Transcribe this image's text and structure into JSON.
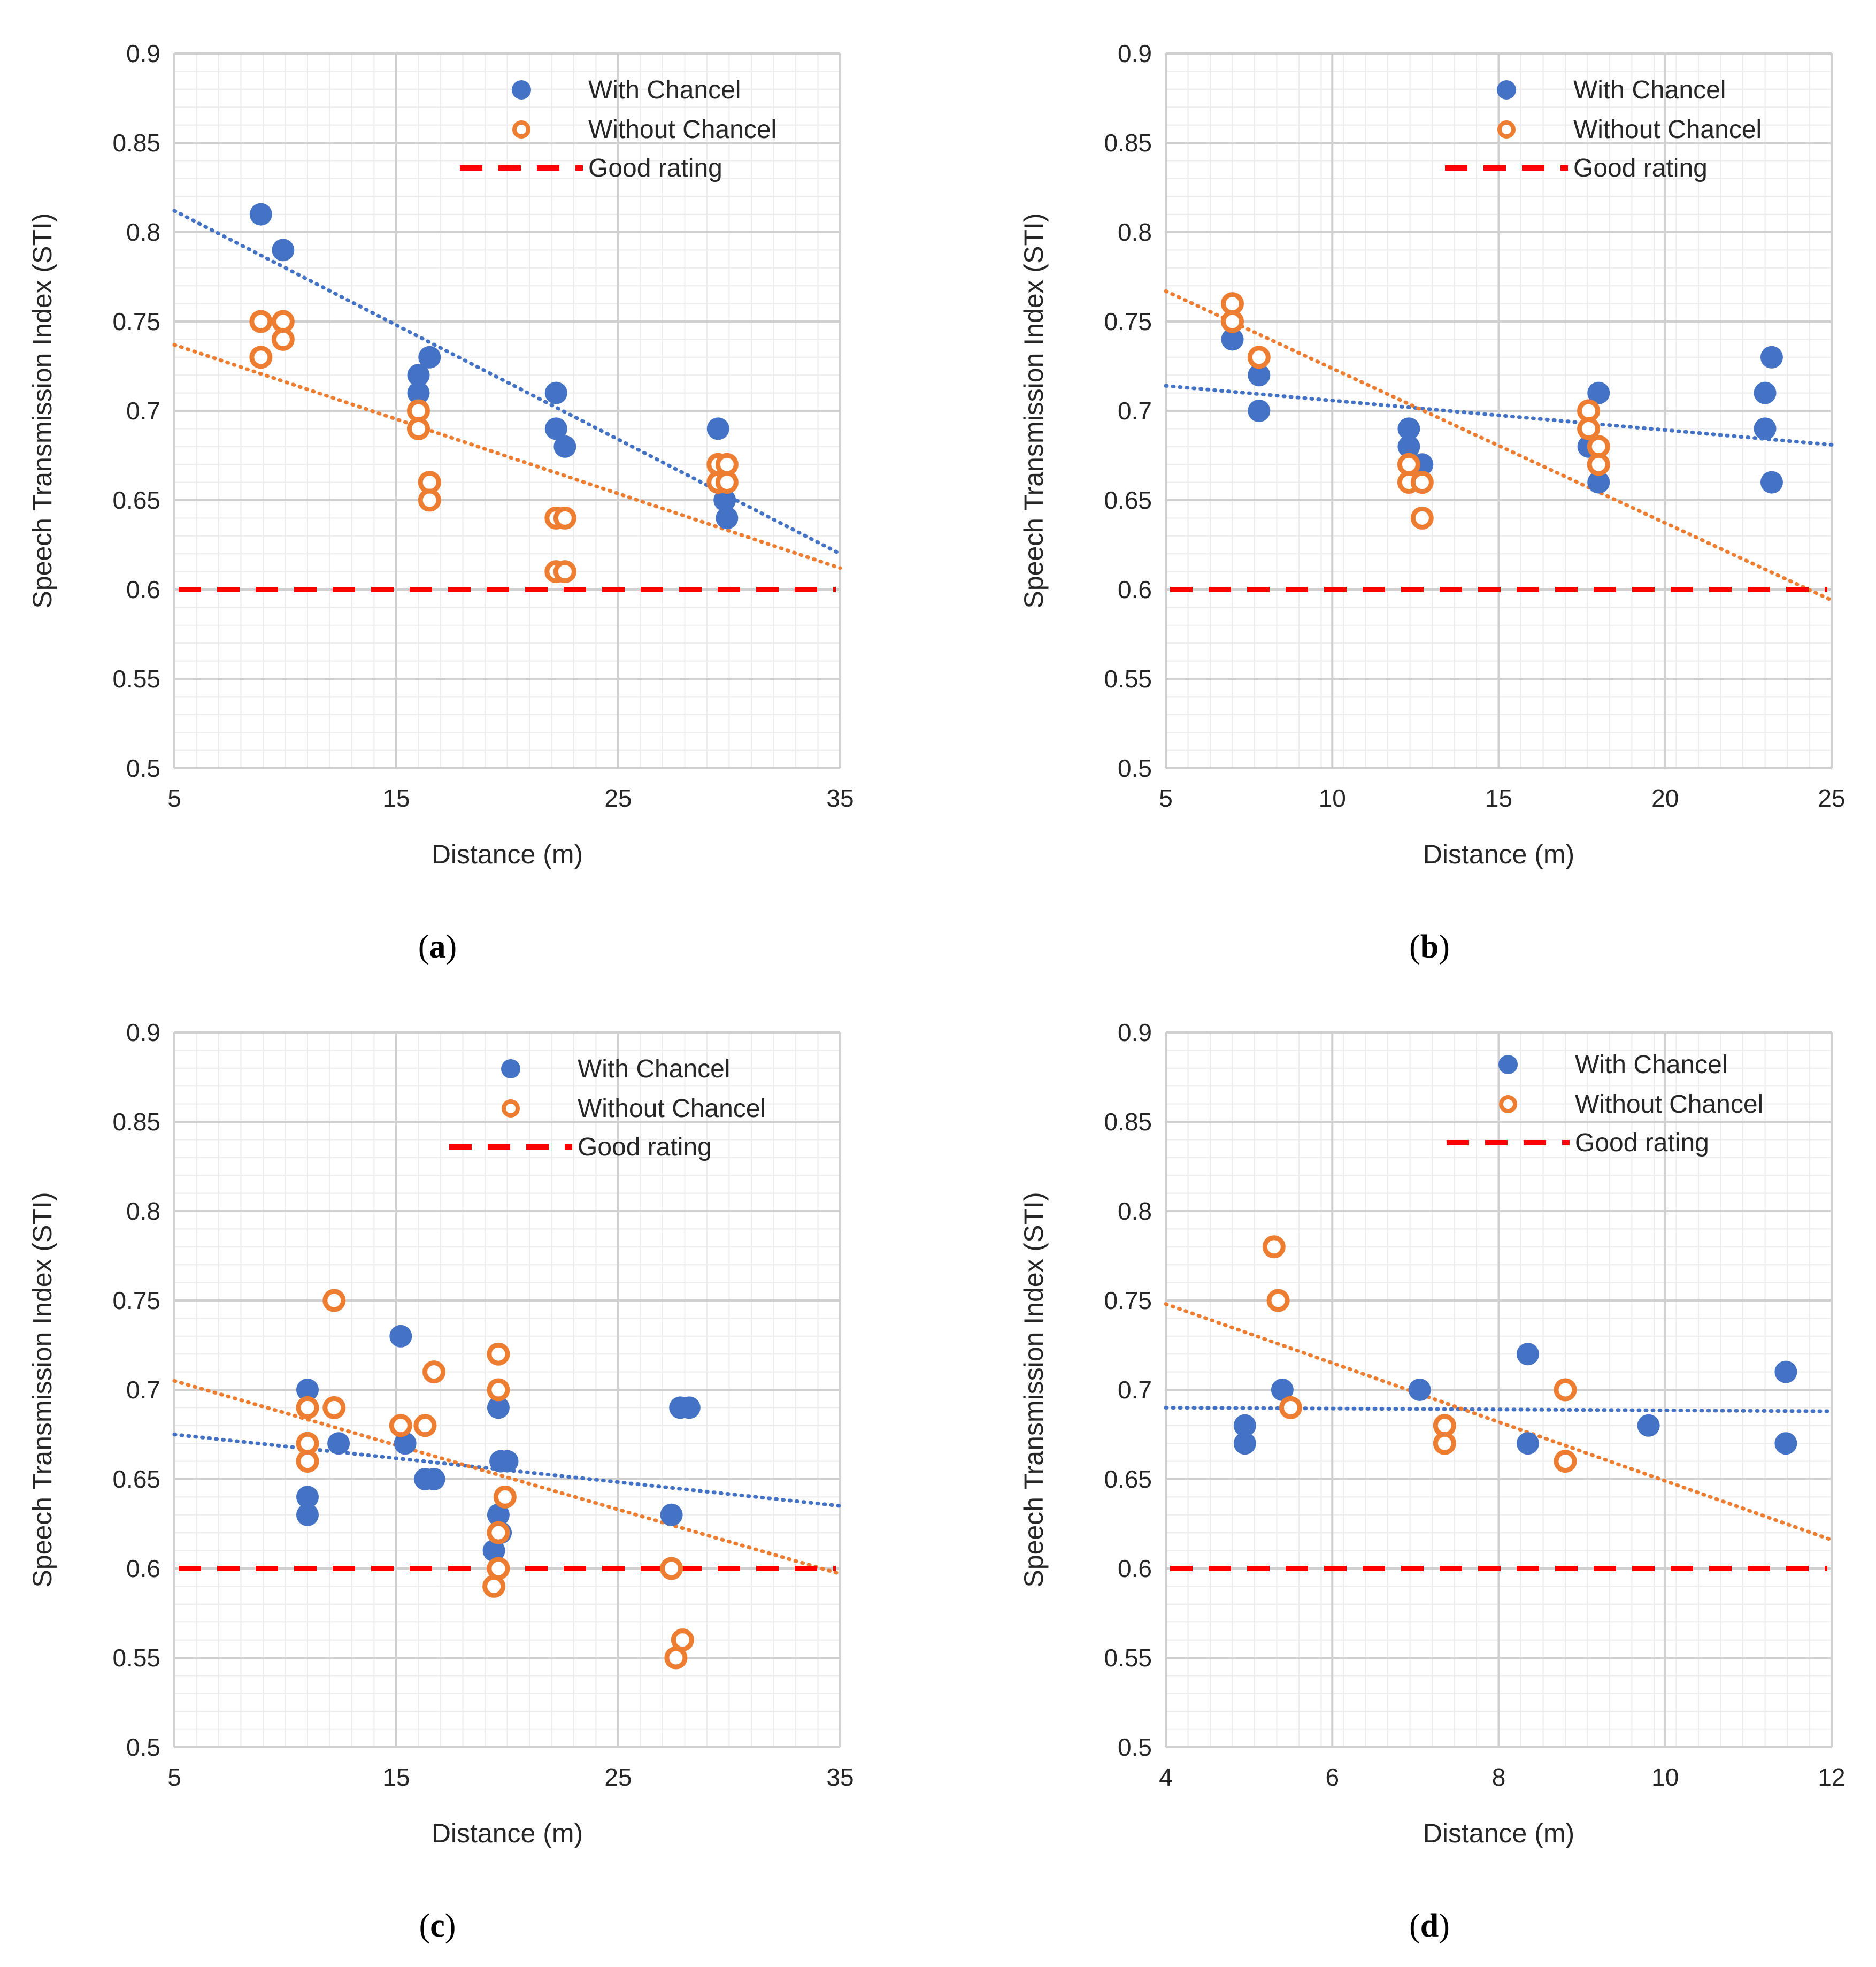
{
  "colors": {
    "with": "#4472C4",
    "without": "#ED7D31",
    "good": "#FF0000",
    "grid_major": "#D0D0D0",
    "grid_minor": "#ECECEC"
  },
  "chart_data": [
    {
      "id": "a",
      "type": "scatter",
      "caption_letter": "a",
      "xlabel": "Distance (m)",
      "ylabel": "Speech Transmission Index (STI)",
      "xlim": [
        5,
        35
      ],
      "ylim": [
        0.5,
        0.9
      ],
      "xticks": [
        5,
        15,
        25,
        35
      ],
      "yticks": [
        0.5,
        0.55,
        0.6,
        0.65,
        0.7,
        0.75,
        0.8,
        0.85,
        0.9
      ],
      "legend_position": "top-right",
      "series": [
        {
          "name": "With Chancel",
          "marker": "filled-circle",
          "points": [
            [
              8.9,
              0.81
            ],
            [
              9.9,
              0.79
            ],
            [
              16,
              0.72
            ],
            [
              16,
              0.71
            ],
            [
              16.5,
              0.73
            ],
            [
              22.2,
              0.71
            ],
            [
              22.2,
              0.69
            ],
            [
              22.6,
              0.68
            ],
            [
              29.5,
              0.69
            ],
            [
              29.8,
              0.65
            ],
            [
              29.9,
              0.64
            ]
          ],
          "trend": [
            [
              5,
              0.812
            ],
            [
              35,
              0.62
            ]
          ]
        },
        {
          "name": "Without Chancel",
          "marker": "hollow-circle",
          "points": [
            [
              8.9,
              0.75
            ],
            [
              9.9,
              0.75
            ],
            [
              9.9,
              0.74
            ],
            [
              8.9,
              0.73
            ],
            [
              16,
              0.7
            ],
            [
              16,
              0.69
            ],
            [
              16.5,
              0.66
            ],
            [
              16.5,
              0.65
            ],
            [
              22.2,
              0.64
            ],
            [
              22.6,
              0.64
            ],
            [
              22.2,
              0.61
            ],
            [
              22.6,
              0.61
            ],
            [
              29.5,
              0.67
            ],
            [
              29.9,
              0.67
            ],
            [
              29.5,
              0.66
            ],
            [
              29.9,
              0.66
            ]
          ],
          "trend": [
            [
              5,
              0.737
            ],
            [
              35,
              0.612
            ]
          ]
        }
      ],
      "reference_line": {
        "name": "Good rating",
        "y": 0.6
      }
    },
    {
      "id": "b",
      "type": "scatter",
      "caption_letter": "b",
      "xlabel": "Distance (m)",
      "ylabel": "Speech Transmission Index (STI)",
      "xlim": [
        5,
        25
      ],
      "ylim": [
        0.5,
        0.9
      ],
      "xticks": [
        5,
        10,
        15,
        20,
        25
      ],
      "yticks": [
        0.5,
        0.55,
        0.6,
        0.65,
        0.7,
        0.75,
        0.8,
        0.85,
        0.9
      ],
      "legend_position": "top-right",
      "series": [
        {
          "name": "With Chancel",
          "marker": "filled-circle",
          "points": [
            [
              7,
              0.74
            ],
            [
              7.8,
              0.72
            ],
            [
              7.8,
              0.7
            ],
            [
              12.3,
              0.69
            ],
            [
              12.3,
              0.68
            ],
            [
              12.7,
              0.67
            ],
            [
              17.7,
              0.68
            ],
            [
              18,
              0.71
            ],
            [
              18,
              0.66
            ],
            [
              23,
              0.71
            ],
            [
              23,
              0.69
            ],
            [
              23.2,
              0.73
            ],
            [
              23.2,
              0.66
            ]
          ],
          "trend": [
            [
              5,
              0.714
            ],
            [
              25,
              0.681
            ]
          ]
        },
        {
          "name": "Without Chancel",
          "marker": "hollow-circle",
          "points": [
            [
              7,
              0.76
            ],
            [
              7,
              0.75
            ],
            [
              7.8,
              0.73
            ],
            [
              12.3,
              0.67
            ],
            [
              12.3,
              0.66
            ],
            [
              12.7,
              0.66
            ],
            [
              12.7,
              0.64
            ],
            [
              17.7,
              0.7
            ],
            [
              17.7,
              0.69
            ],
            [
              18,
              0.68
            ],
            [
              18,
              0.67
            ]
          ],
          "trend": [
            [
              5,
              0.767
            ],
            [
              25,
              0.594
            ]
          ]
        }
      ],
      "reference_line": {
        "name": "Good rating",
        "y": 0.6
      }
    },
    {
      "id": "c",
      "type": "scatter",
      "caption_letter": "c",
      "xlabel": "Distance (m)",
      "ylabel": "Speech Transmission Index (STI)",
      "xlim": [
        5,
        35
      ],
      "ylim": [
        0.5,
        0.9
      ],
      "xticks": [
        5,
        15,
        25,
        35
      ],
      "yticks": [
        0.5,
        0.55,
        0.6,
        0.65,
        0.7,
        0.75,
        0.8,
        0.85,
        0.9
      ],
      "legend_position": "top-right",
      "series": [
        {
          "name": "With Chancel",
          "marker": "filled-circle",
          "points": [
            [
              11,
              0.7
            ],
            [
              11,
              0.64
            ],
            [
              11,
              0.63
            ],
            [
              12.4,
              0.67
            ],
            [
              15.2,
              0.73
            ],
            [
              15.4,
              0.67
            ],
            [
              16.3,
              0.65
            ],
            [
              16.7,
              0.65
            ],
            [
              19.6,
              0.69
            ],
            [
              19.7,
              0.66
            ],
            [
              20,
              0.66
            ],
            [
              19.6,
              0.63
            ],
            [
              19.7,
              0.62
            ],
            [
              19.4,
              0.61
            ],
            [
              27.4,
              0.63
            ],
            [
              27.8,
              0.69
            ],
            [
              28.2,
              0.69
            ]
          ],
          "trend": [
            [
              5,
              0.675
            ],
            [
              35,
              0.635
            ]
          ]
        },
        {
          "name": "Without Chancel",
          "marker": "hollow-circle",
          "points": [
            [
              12.2,
              0.75
            ],
            [
              11,
              0.69
            ],
            [
              11,
              0.67
            ],
            [
              11,
              0.66
            ],
            [
              12.2,
              0.69
            ],
            [
              15.2,
              0.68
            ],
            [
              16.3,
              0.68
            ],
            [
              16.7,
              0.71
            ],
            [
              19.6,
              0.72
            ],
            [
              19.6,
              0.7
            ],
            [
              19.9,
              0.64
            ],
            [
              19.6,
              0.62
            ],
            [
              19.6,
              0.6
            ],
            [
              19.4,
              0.59
            ],
            [
              27.4,
              0.6
            ],
            [
              27.6,
              0.55
            ],
            [
              27.9,
              0.56
            ]
          ],
          "trend": [
            [
              5,
              0.705
            ],
            [
              35,
              0.597
            ]
          ]
        }
      ],
      "reference_line": {
        "name": "Good rating",
        "y": 0.6
      }
    },
    {
      "id": "d",
      "type": "scatter",
      "caption_letter": "d",
      "xlabel": "Distance (m)",
      "ylabel": "Speech Transmission Index (STI)",
      "xlim": [
        4,
        12
      ],
      "ylim": [
        0.5,
        0.9
      ],
      "xticks": [
        4,
        6,
        8,
        10,
        12
      ],
      "yticks": [
        0.5,
        0.55,
        0.6,
        0.65,
        0.7,
        0.75,
        0.8,
        0.85,
        0.9
      ],
      "legend_position": "top-right",
      "series": [
        {
          "name": "With Chancel",
          "marker": "filled-circle",
          "points": [
            [
              4.95,
              0.68
            ],
            [
              4.95,
              0.67
            ],
            [
              5.4,
              0.7
            ],
            [
              5.5,
              0.69
            ],
            [
              7.05,
              0.7
            ],
            [
              8.35,
              0.72
            ],
            [
              8.35,
              0.67
            ],
            [
              9.8,
              0.68
            ],
            [
              11.45,
              0.71
            ],
            [
              11.45,
              0.67
            ]
          ],
          "trend": [
            [
              4,
              0.69
            ],
            [
              12,
              0.688
            ]
          ]
        },
        {
          "name": "Without Chancel",
          "marker": "hollow-circle",
          "points": [
            [
              5.3,
              0.78
            ],
            [
              5.35,
              0.75
            ],
            [
              5.5,
              0.69
            ],
            [
              7.35,
              0.68
            ],
            [
              7.35,
              0.67
            ],
            [
              8.8,
              0.7
            ],
            [
              8.8,
              0.66
            ]
          ],
          "trend": [
            [
              4,
              0.748
            ],
            [
              12,
              0.616
            ]
          ]
        }
      ],
      "reference_line": {
        "name": "Good rating",
        "y": 0.6
      }
    }
  ]
}
